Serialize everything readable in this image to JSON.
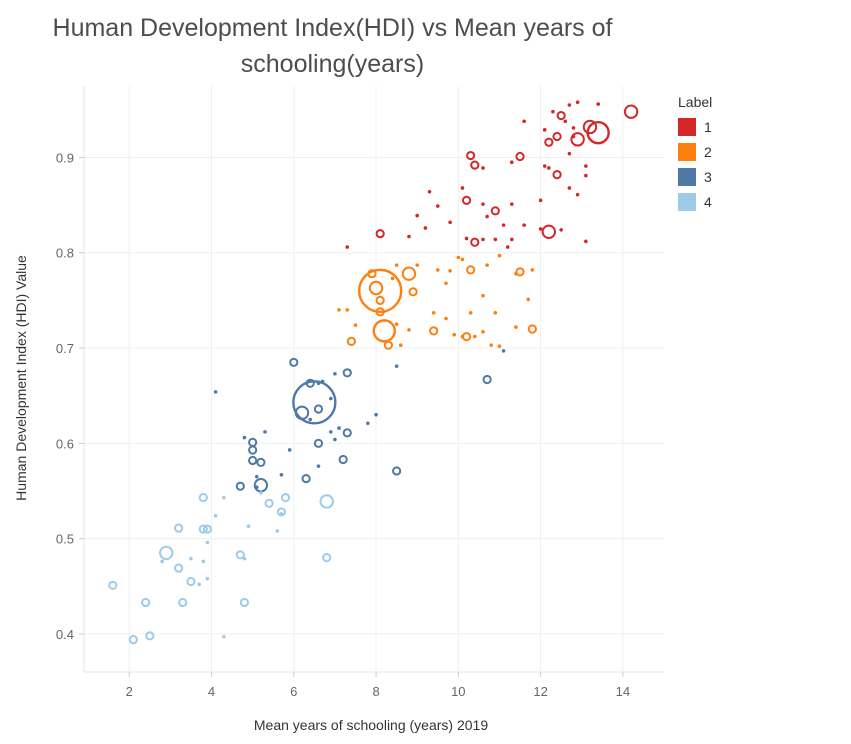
{
  "chart_data": {
    "type": "scatter",
    "title_lines": [
      "Human Development Index(HDI) vs Mean years of",
      "schooling(years)"
    ],
    "xlabel": "Mean years of schooling (years) 2019",
    "ylabel": "Human Development Index (HDI) Value",
    "xlim": [
      0.9,
      15.0
    ],
    "ylim": [
      0.36,
      0.975
    ],
    "x_ticks": [
      2,
      4,
      6,
      8,
      10,
      12,
      14
    ],
    "y_ticks": [
      0.4,
      0.5,
      0.6,
      0.7,
      0.8,
      0.9
    ],
    "grid": true,
    "legend_title": "Label",
    "legend_position": "right",
    "series": [
      {
        "label": "1",
        "color": "#d62728",
        "points": [
          [
            14.2,
            0.948,
            3
          ],
          [
            13.4,
            0.926,
            4
          ],
          [
            13.2,
            0.932,
            3
          ],
          [
            12.9,
            0.919,
            3
          ],
          [
            13.4,
            0.956,
            1
          ],
          [
            12.9,
            0.958,
            1
          ],
          [
            12.7,
            0.955,
            1
          ],
          [
            12.5,
            0.944,
            2
          ],
          [
            12.3,
            0.948,
            1
          ],
          [
            12.6,
            0.938,
            1
          ],
          [
            12.8,
            0.931,
            1
          ],
          [
            12.4,
            0.922,
            2
          ],
          [
            12.8,
            0.922,
            1
          ],
          [
            12.2,
            0.916,
            2
          ],
          [
            12.1,
            0.929,
            1
          ],
          [
            11.6,
            0.938,
            1
          ],
          [
            11.5,
            0.901,
            2
          ],
          [
            11.3,
            0.895,
            1
          ],
          [
            12.7,
            0.904,
            1
          ],
          [
            13.1,
            0.891,
            1
          ],
          [
            13.1,
            0.881,
            1
          ],
          [
            12.4,
            0.882,
            2
          ],
          [
            12.2,
            0.889,
            1
          ],
          [
            12.1,
            0.891,
            1
          ],
          [
            10.3,
            0.902,
            2
          ],
          [
            10.4,
            0.892,
            2
          ],
          [
            10.6,
            0.889,
            1
          ],
          [
            10.1,
            0.868,
            1
          ],
          [
            9.3,
            0.864,
            1
          ],
          [
            9.5,
            0.849,
            1
          ],
          [
            10.2,
            0.855,
            2
          ],
          [
            10.6,
            0.851,
            1
          ],
          [
            10.9,
            0.844,
            2
          ],
          [
            11.3,
            0.851,
            1
          ],
          [
            12.9,
            0.861,
            1
          ],
          [
            12.7,
            0.868,
            1
          ],
          [
            12.0,
            0.855,
            1
          ],
          [
            9.0,
            0.839,
            1
          ],
          [
            9.2,
            0.826,
            1
          ],
          [
            9.8,
            0.832,
            1
          ],
          [
            10.7,
            0.838,
            1
          ],
          [
            11.1,
            0.829,
            1
          ],
          [
            11.6,
            0.829,
            1
          ],
          [
            12.0,
            0.825,
            1
          ],
          [
            12.2,
            0.822,
            3
          ],
          [
            12.5,
            0.824,
            1
          ],
          [
            7.3,
            0.806,
            1
          ],
          [
            8.1,
            0.82,
            2
          ],
          [
            8.8,
            0.817,
            1
          ],
          [
            10.2,
            0.815,
            1
          ],
          [
            10.4,
            0.811,
            2
          ],
          [
            10.6,
            0.814,
            1
          ],
          [
            10.9,
            0.814,
            1
          ],
          [
            11.3,
            0.814,
            1
          ],
          [
            11.2,
            0.806,
            1
          ],
          [
            13.1,
            0.812,
            1
          ]
        ]
      },
      {
        "label": "2",
        "color": "#ff7f0e",
        "points": [
          [
            8.1,
            0.76,
            6
          ],
          [
            7.9,
            0.778,
            2
          ],
          [
            8.0,
            0.763,
            3
          ],
          [
            8.1,
            0.75,
            2
          ],
          [
            8.4,
            0.773,
            1
          ],
          [
            8.8,
            0.778,
            3
          ],
          [
            8.5,
            0.787,
            1
          ],
          [
            9.0,
            0.787,
            1
          ],
          [
            9.5,
            0.782,
            1
          ],
          [
            9.8,
            0.781,
            1
          ],
          [
            10.3,
            0.782,
            2
          ],
          [
            10.0,
            0.795,
            1
          ],
          [
            10.1,
            0.793,
            1
          ],
          [
            10.7,
            0.787,
            1
          ],
          [
            11.0,
            0.797,
            1
          ],
          [
            11.4,
            0.778,
            1
          ],
          [
            11.5,
            0.78,
            2
          ],
          [
            11.8,
            0.782,
            1
          ],
          [
            8.9,
            0.759,
            2
          ],
          [
            9.7,
            0.768,
            1
          ],
          [
            10.6,
            0.755,
            1
          ],
          [
            11.7,
            0.751,
            1
          ],
          [
            8.1,
            0.738,
            2
          ],
          [
            8.5,
            0.725,
            1
          ],
          [
            9.4,
            0.737,
            1
          ],
          [
            9.7,
            0.731,
            1
          ],
          [
            10.3,
            0.737,
            1
          ],
          [
            10.9,
            0.737,
            1
          ],
          [
            11.4,
            0.722,
            1
          ],
          [
            11.8,
            0.72,
            2
          ],
          [
            7.1,
            0.74,
            1
          ],
          [
            7.3,
            0.74,
            1
          ],
          [
            7.5,
            0.724,
            1
          ],
          [
            7.4,
            0.707,
            2
          ],
          [
            8.2,
            0.718,
            4
          ],
          [
            8.3,
            0.703,
            2
          ],
          [
            8.6,
            0.703,
            1
          ],
          [
            8.8,
            0.719,
            1
          ],
          [
            9.4,
            0.718,
            2
          ],
          [
            9.9,
            0.714,
            1
          ],
          [
            10.1,
            0.712,
            1
          ],
          [
            10.2,
            0.712,
            2
          ],
          [
            10.6,
            0.717,
            1
          ],
          [
            10.8,
            0.703,
            1
          ],
          [
            11.0,
            0.702,
            1
          ],
          [
            10.4,
            0.712,
            1
          ]
        ]
      },
      {
        "label": "3",
        "color": "#4e79a7",
        "points": [
          [
            6.5,
            0.643,
            6
          ],
          [
            6.2,
            0.632,
            3
          ],
          [
            6.4,
            0.625,
            1
          ],
          [
            6.0,
            0.685,
            2
          ],
          [
            6.4,
            0.663,
            2
          ],
          [
            6.6,
            0.663,
            1
          ],
          [
            6.7,
            0.665,
            1
          ],
          [
            7.0,
            0.673,
            1
          ],
          [
            7.3,
            0.674,
            2
          ],
          [
            6.9,
            0.647,
            1
          ],
          [
            7.1,
            0.616,
            1
          ],
          [
            6.6,
            0.636,
            2
          ],
          [
            6.9,
            0.612,
            1
          ],
          [
            7.3,
            0.611,
            2
          ],
          [
            7.0,
            0.604,
            1
          ],
          [
            7.8,
            0.621,
            1
          ],
          [
            8.0,
            0.63,
            1
          ],
          [
            4.1,
            0.654,
            1
          ],
          [
            4.8,
            0.606,
            1
          ],
          [
            5.0,
            0.601,
            2
          ],
          [
            5.0,
            0.593,
            2
          ],
          [
            5.3,
            0.612,
            1
          ],
          [
            5.0,
            0.582,
            2
          ],
          [
            5.2,
            0.58,
            2
          ],
          [
            5.9,
            0.593,
            1
          ],
          [
            6.6,
            0.6,
            2
          ],
          [
            6.3,
            0.563,
            2
          ],
          [
            6.6,
            0.576,
            1
          ],
          [
            7.2,
            0.583,
            2
          ],
          [
            8.5,
            0.571,
            2
          ],
          [
            4.7,
            0.555,
            2
          ],
          [
            5.1,
            0.565,
            1
          ],
          [
            5.2,
            0.556,
            3
          ],
          [
            5.1,
            0.554,
            1
          ],
          [
            5.7,
            0.567,
            1
          ],
          [
            8.5,
            0.681,
            1
          ],
          [
            10.7,
            0.667,
            2
          ],
          [
            11.1,
            0.697,
            1
          ]
        ]
      },
      {
        "label": "4",
        "color": "#a0cbe8",
        "points": [
          [
            6.8,
            0.539,
            3
          ],
          [
            6.8,
            0.48,
            2
          ],
          [
            5.8,
            0.543,
            2
          ],
          [
            5.7,
            0.528,
            2
          ],
          [
            5.7,
            0.526,
            1
          ],
          [
            5.4,
            0.537,
            2
          ],
          [
            5.6,
            0.508,
            1
          ],
          [
            5.2,
            0.548,
            1
          ],
          [
            4.9,
            0.513,
            1
          ],
          [
            4.3,
            0.543,
            1
          ],
          [
            3.8,
            0.543,
            2
          ],
          [
            4.1,
            0.524,
            1
          ],
          [
            3.8,
            0.51,
            2
          ],
          [
            3.9,
            0.51,
            2
          ],
          [
            3.9,
            0.496,
            1
          ],
          [
            3.2,
            0.511,
            2
          ],
          [
            2.9,
            0.485,
            3
          ],
          [
            2.8,
            0.476,
            1
          ],
          [
            3.5,
            0.479,
            1
          ],
          [
            3.8,
            0.476,
            1
          ],
          [
            4.7,
            0.483,
            2
          ],
          [
            4.8,
            0.479,
            1
          ],
          [
            4.8,
            0.433,
            2
          ],
          [
            3.2,
            0.469,
            2
          ],
          [
            3.5,
            0.455,
            2
          ],
          [
            3.7,
            0.452,
            1
          ],
          [
            3.9,
            0.458,
            1
          ],
          [
            3.3,
            0.433,
            2
          ],
          [
            2.4,
            0.433,
            2
          ],
          [
            1.6,
            0.451,
            2
          ],
          [
            2.5,
            0.398,
            2
          ],
          [
            2.1,
            0.394,
            2
          ],
          [
            4.3,
            0.397,
            1
          ]
        ]
      }
    ]
  }
}
